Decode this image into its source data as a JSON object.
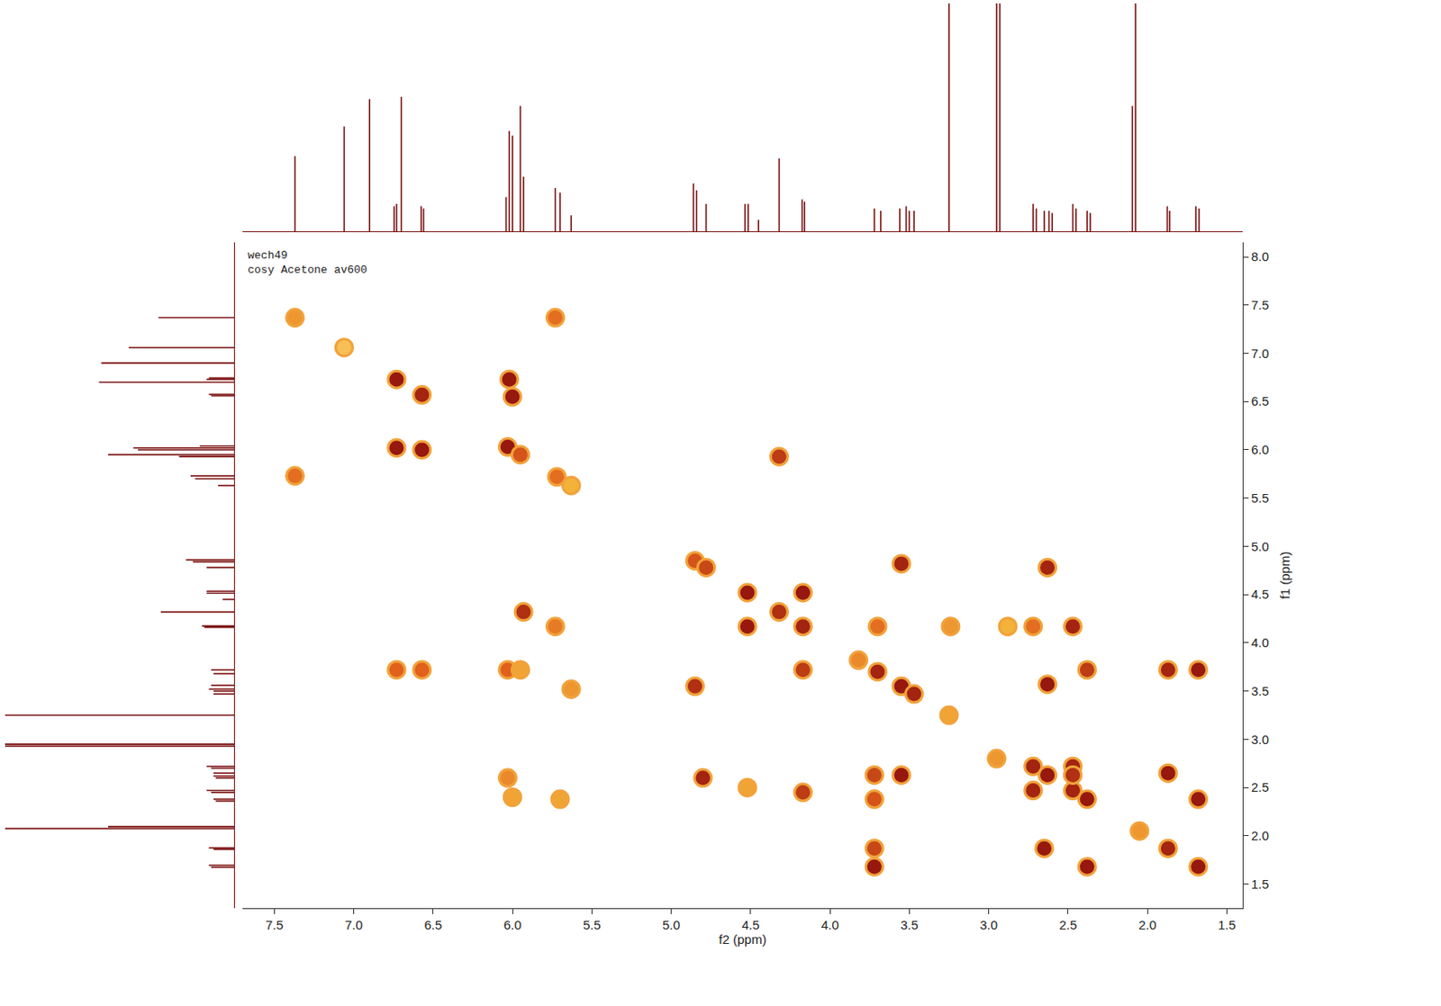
{
  "chart_data": {
    "type": "scatter",
    "annotations": [
      "wech49",
      "cosy Acetone av600"
    ],
    "x_label": "f2 (ppm)",
    "y_label": "f1 (ppm)",
    "xlim": [
      7.7,
      1.4
    ],
    "ylim": [
      1.25,
      8.15
    ],
    "xticks": [
      7.5,
      {
        "value": 7,
        "label": "7.0"
      },
      6.5,
      {
        "value": 6,
        "label": "6.0"
      },
      5.5,
      {
        "value": 5,
        "label": "5.0"
      },
      4.5,
      {
        "value": 4,
        "label": "4.0"
      },
      3.5,
      {
        "value": 3,
        "label": "3.0"
      },
      2.5,
      {
        "value": 2,
        "label": "2.0"
      },
      1.5
    ],
    "yticks": [
      1.5,
      {
        "value": 2,
        "label": "2.0"
      },
      2.5,
      {
        "value": 3,
        "label": "3.0"
      },
      3.5,
      {
        "value": 4,
        "label": "4.0"
      },
      4.5,
      {
        "value": 5,
        "label": "5.0"
      },
      5.5,
      {
        "value": 6,
        "label": "6.0"
      },
      6.5,
      {
        "value": 7,
        "label": "7.0"
      },
      7.5,
      {
        "value": 8,
        "label": "8.0"
      }
    ],
    "grid": false,
    "color": "#7a1010",
    "cross_peaks": {
      "x": [
        7.37,
        7.06,
        6.73,
        6.57,
        6.03,
        5.95,
        5.72,
        5.63,
        4.85,
        4.78,
        4.52,
        4.32,
        4.17,
        3.82,
        3.7,
        3.55,
        3.47,
        3.25,
        2.95,
        2.72,
        2.63,
        2.47,
        2.38,
        2.05,
        1.87,
        1.68,
        6.73,
        6.02,
        6.57,
        6.0,
        6.73,
        6.57,
        6.03,
        5.95,
        3.72,
        3.72,
        3.72,
        3.72,
        1.68,
        1.87,
        2.38,
        2.63,
        3.55,
        1.68,
        2.38,
        1.87,
        2.65,
        4.52,
        4.17,
        4.52,
        4.17,
        2.47,
        2.47,
        2.72,
        2.72,
        4.17,
        3.7,
        4.32,
        5.93,
        4.8,
        2.63,
        4.85,
        3.55,
        7.37,
        5.73,
        5.73,
        5.7,
        5.63,
        6.03,
        6.0,
        3.24,
        2.88,
        2.47
      ],
      "y": [
        7.37,
        7.06,
        6.73,
        6.57,
        6.03,
        5.95,
        5.72,
        5.63,
        4.85,
        4.78,
        4.52,
        4.32,
        4.17,
        3.82,
        3.7,
        3.55,
        3.47,
        3.25,
        2.8,
        2.72,
        2.63,
        2.47,
        2.38,
        2.05,
        1.87,
        1.68,
        6.02,
        6.73,
        6.0,
        6.55,
        3.72,
        3.72,
        3.72,
        3.72,
        1.68,
        1.87,
        2.38,
        2.63,
        3.72,
        3.72,
        3.72,
        3.57,
        2.63,
        2.38,
        1.68,
        2.65,
        1.87,
        4.17,
        4.52,
        2.5,
        2.45,
        4.17,
        2.72,
        2.47,
        4.17,
        3.72,
        4.17,
        5.93,
        4.32,
        2.6,
        4.78,
        3.55,
        4.82,
        5.73,
        7.37,
        4.17,
        2.38,
        3.52,
        2.6,
        2.4,
        4.17,
        4.17,
        2.63
      ],
      "intensity": [
        45,
        25,
        95,
        90,
        95,
        70,
        60,
        35,
        70,
        75,
        95,
        85,
        90,
        50,
        90,
        95,
        90,
        40,
        45,
        90,
        95,
        90,
        95,
        45,
        90,
        95,
        95,
        95,
        95,
        95,
        65,
        65,
        65,
        40,
        95,
        75,
        70,
        75,
        95,
        90,
        80,
        95,
        95,
        95,
        95,
        95,
        95,
        95,
        95,
        40,
        80,
        90,
        90,
        90,
        60,
        80,
        60,
        80,
        85,
        90,
        90,
        85,
        90,
        60,
        60,
        55,
        40,
        45,
        50,
        40,
        45,
        35,
        85
      ]
    },
    "intensity_lim": [
      0,
      100
    ],
    "projection": {
      "x": [
        7.37,
        7.06,
        6.9,
        6.745,
        6.73,
        6.7,
        6.575,
        6.56,
        6.04,
        6.02,
        6.0,
        5.95,
        5.93,
        5.73,
        5.7,
        5.63,
        4.86,
        4.84,
        4.78,
        4.535,
        4.515,
        4.45,
        4.32,
        4.175,
        4.16,
        3.72,
        3.68,
        3.56,
        3.52,
        3.5,
        3.47,
        3.25,
        2.95,
        2.93,
        2.72,
        2.7,
        2.65,
        2.62,
        2.6,
        2.47,
        2.45,
        2.38,
        2.36,
        2.095,
        2.075,
        1.875,
        1.86,
        1.695,
        1.675
      ],
      "values": [
        33,
        46,
        58,
        11,
        12,
        59,
        11,
        10,
        15,
        44,
        42,
        55,
        24,
        19,
        17,
        7,
        21,
        18,
        12,
        12,
        12,
        5,
        32,
        14,
        13,
        10,
        9,
        10,
        11,
        9,
        9,
        150,
        150,
        130,
        12,
        10,
        9,
        9,
        8,
        12,
        10,
        9,
        8,
        55,
        150,
        11,
        9,
        11,
        10
      ]
    },
    "projection_lim": [
      0,
      100
    ]
  }
}
